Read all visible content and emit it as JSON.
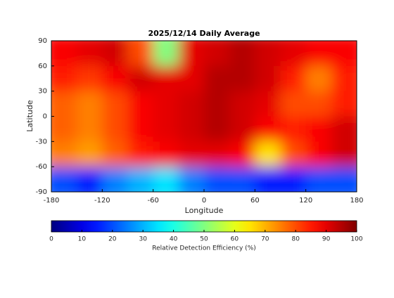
{
  "chart_data": {
    "type": "heatmap",
    "title": "2025/12/14 Daily Average",
    "x_label": "Longitude",
    "y_label": "Latitude",
    "xlim": [
      -180,
      180
    ],
    "xticks": [
      -180,
      -120,
      -60,
      0,
      60,
      120,
      180
    ],
    "ylim": [
      -90,
      90
    ],
    "yticks": [
      -90,
      -60,
      -30,
      0,
      30,
      60,
      90
    ],
    "x_edges": [
      -180,
      -150,
      -120,
      -90,
      -60,
      -30,
      0,
      30,
      60,
      90,
      120,
      150,
      180
    ],
    "y_edges": [
      90,
      60,
      30,
      0,
      -30,
      -60,
      -90
    ],
    "values": [
      [
        88,
        90,
        92,
        80,
        50,
        90,
        92,
        95,
        92,
        90,
        88,
        88
      ],
      [
        85,
        82,
        88,
        92,
        90,
        90,
        95,
        95,
        92,
        85,
        75,
        85
      ],
      [
        78,
        75,
        80,
        88,
        90,
        92,
        95,
        92,
        90,
        80,
        80,
        85
      ],
      [
        78,
        75,
        80,
        88,
        90,
        92,
        95,
        92,
        88,
        85,
        88,
        92
      ],
      [
        75,
        72,
        78,
        85,
        88,
        90,
        90,
        88,
        65,
        80,
        88,
        92
      ],
      [
        20,
        15,
        25,
        30,
        35,
        25,
        20,
        20,
        15,
        15,
        20,
        20
      ]
    ],
    "colormap": "jet",
    "colorbar_label": "Relative Detection Efficiency (%)",
    "clim": [
      0,
      100
    ],
    "cticks": [
      0,
      10,
      20,
      30,
      40,
      50,
      60,
      70,
      80,
      90,
      100
    ]
  }
}
